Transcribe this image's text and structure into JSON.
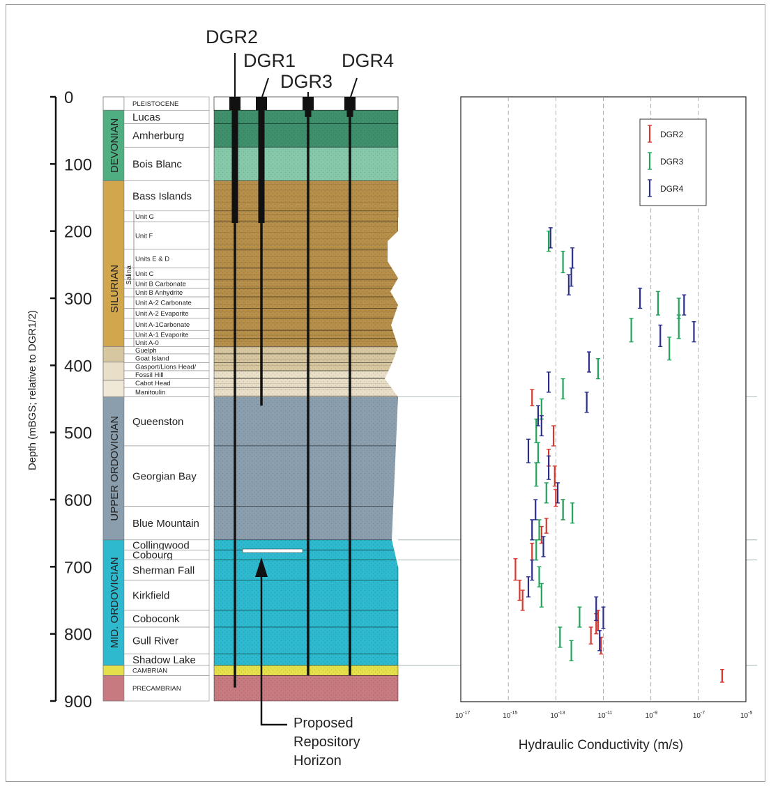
{
  "wells": [
    "DGR2",
    "DGR1",
    "DGR3",
    "DGR4"
  ],
  "depth_axis": {
    "label": "Depth (mBGS; relative to DGR1/2)",
    "ticks": [
      "0",
      "100",
      "200",
      "300",
      "400",
      "500",
      "600",
      "700",
      "800",
      "900"
    ],
    "range": [
      0,
      900
    ]
  },
  "systems": [
    {
      "name": "DEVONIAN",
      "top": 20,
      "bottom": 125,
      "color": "#4fae82"
    },
    {
      "name": "SILURIAN",
      "top": 125,
      "bottom": 447,
      "color": "#d2a64d"
    },
    {
      "name": "UPPER ORDOVICIAN",
      "top": 447,
      "bottom": 660,
      "color": "#8a9eae"
    },
    {
      "name": "MID. ORDOVICIAN",
      "top": 660,
      "bottom": 847,
      "color": "#2eb9cf"
    }
  ],
  "salina_label": "Salina",
  "formations": [
    {
      "name": "PLEISTOCENE",
      "top": 0,
      "bottom": 20,
      "size": "sm",
      "color": "#ffffff"
    },
    {
      "name": "Lucas",
      "top": 20,
      "bottom": 40,
      "size": "lg",
      "color": "#3f8f6c"
    },
    {
      "name": "Amherburg",
      "top": 40,
      "bottom": 75,
      "size": "lg",
      "color": "#3f8f6c"
    },
    {
      "name": "Bois Blanc",
      "top": 75,
      "bottom": 125,
      "size": "lg",
      "color": "#86c9aa"
    },
    {
      "name": "Bass Islands",
      "top": 125,
      "bottom": 170,
      "size": "lg",
      "color": "#b68f4a"
    },
    {
      "name": "Unit G",
      "top": 170,
      "bottom": 186,
      "size": "sm",
      "color": "#b68f4a"
    },
    {
      "name": "Unit F",
      "top": 186,
      "bottom": 227,
      "size": "sm",
      "color": "#b68f4a"
    },
    {
      "name": "Units E & D",
      "top": 227,
      "bottom": 255,
      "size": "sm",
      "color": "#b68f4a"
    },
    {
      "name": "Unit C",
      "top": 255,
      "bottom": 272,
      "size": "sm",
      "color": "#b68f4a"
    },
    {
      "name": "Unit B Carbonate",
      "top": 272,
      "bottom": 285,
      "size": "sm",
      "color": "#b68f4a"
    },
    {
      "name": "Unit B Anhydrite",
      "top": 285,
      "bottom": 298,
      "size": "sm",
      "color": "#b68f4a"
    },
    {
      "name": "Unit A-2 Carbonate",
      "top": 298,
      "bottom": 315,
      "size": "sm",
      "color": "#b68f4a"
    },
    {
      "name": "Unit A-2 Evaporite",
      "top": 315,
      "bottom": 330,
      "size": "sm",
      "color": "#b68f4a"
    },
    {
      "name": "Unit A-1Carbonate",
      "top": 330,
      "bottom": 348,
      "size": "sm",
      "color": "#b68f4a"
    },
    {
      "name": "Unit A-1 Evaporite",
      "top": 348,
      "bottom": 360,
      "size": "sm",
      "color": "#b68f4a"
    },
    {
      "name": "Unit A-0",
      "top": 360,
      "bottom": 372,
      "size": "sm",
      "color": "#b68f4a"
    },
    {
      "name": "Guelph",
      "top": 372,
      "bottom": 383,
      "size": "sm",
      "color": "#d7c7a1"
    },
    {
      "name": "Goat Island",
      "top": 383,
      "bottom": 396,
      "size": "sm",
      "color": "#d7c7a1"
    },
    {
      "name": "Gasport/Lions Head/",
      "top": 396,
      "bottom": 408,
      "size": "sm",
      "color": "#d7c7a1"
    },
    {
      "name": "Fossil Hill",
      "top": 408,
      "bottom": 420,
      "size": "sm",
      "color": "#e9dfc8"
    },
    {
      "name": "Cabot Head",
      "top": 420,
      "bottom": 433,
      "size": "sm",
      "color": "#e9dfc8"
    },
    {
      "name": "Manitoulin",
      "top": 433,
      "bottom": 447,
      "size": "sm",
      "color": "#e9dfc8"
    },
    {
      "name": "Queenston",
      "top": 447,
      "bottom": 520,
      "size": "lg",
      "color": "#8a9eae"
    },
    {
      "name": "Georgian Bay",
      "top": 520,
      "bottom": 610,
      "size": "lg",
      "color": "#8a9eae"
    },
    {
      "name": "Blue Mountain",
      "top": 610,
      "bottom": 660,
      "size": "lg",
      "color": "#8a9eae"
    },
    {
      "name": "Collingwood",
      "top": 660,
      "bottom": 675,
      "size": "lg",
      "color": "#2eb9cf"
    },
    {
      "name": "Cobourg",
      "top": 675,
      "bottom": 690,
      "size": "lg",
      "color": "#2eb9cf"
    },
    {
      "name": "Sherman Fall",
      "top": 690,
      "bottom": 720,
      "size": "lg",
      "color": "#2eb9cf"
    },
    {
      "name": "Kirkfield",
      "top": 720,
      "bottom": 765,
      "size": "lg",
      "color": "#2eb9cf"
    },
    {
      "name": "Coboconk",
      "top": 765,
      "bottom": 790,
      "size": "lg",
      "color": "#2eb9cf"
    },
    {
      "name": "Gull River",
      "top": 790,
      "bottom": 830,
      "size": "lg",
      "color": "#2eb9cf"
    },
    {
      "name": "Shadow Lake",
      "top": 830,
      "bottom": 847,
      "size": "lg",
      "color": "#2eb9cf"
    },
    {
      "name": "CAMBRIAN",
      "top": 847,
      "bottom": 862,
      "size": "sm",
      "color": "#e4df4a"
    },
    {
      "name": "PRECAMBRIAN",
      "top": 862,
      "bottom": 900,
      "size": "sm",
      "color": "#c77a80"
    }
  ],
  "repository": {
    "label_lines": [
      "Proposed",
      "Repository",
      "Horizon"
    ],
    "depth": 670
  },
  "chart_data": {
    "type": "scatter",
    "subtype": "vertical error bars (depth interval vs. hydraulic conductivity)",
    "xlabel": "Hydraulic Conductivity (m/s)",
    "xscale": "log",
    "xlim": [
      1e-17,
      1e-05
    ],
    "x_tick_labels": [
      "10-17",
      "10-15",
      "10-13",
      "10-11",
      "10-9",
      "10-7",
      "10-5"
    ],
    "ylim": [
      0,
      900
    ],
    "y_inverted": true,
    "grid": "vertical dashed lines at each decade",
    "legend_position": "top-right",
    "series": [
      {
        "name": "DGR2",
        "color": "#d7372d",
        "points": [
          {
            "k": 1e-14,
            "top": 436,
            "bottom": 460
          },
          {
            "k": 8e-14,
            "top": 490,
            "bottom": 520
          },
          {
            "k": 5e-14,
            "top": 525,
            "bottom": 550
          },
          {
            "k": 9e-14,
            "top": 550,
            "bottom": 580
          },
          {
            "k": 1e-13,
            "top": 585,
            "bottom": 610
          },
          {
            "k": 2e-13,
            "top": 600,
            "bottom": 630
          },
          {
            "k": 4e-14,
            "top": 628,
            "bottom": 650
          },
          {
            "k": 2.5e-14,
            "top": 640,
            "bottom": 665
          },
          {
            "k": 1e-14,
            "top": 665,
            "bottom": 690
          },
          {
            "k": 2e-15,
            "top": 688,
            "bottom": 720
          },
          {
            "k": 3e-15,
            "top": 720,
            "bottom": 750
          },
          {
            "k": 4e-15,
            "top": 735,
            "bottom": 765
          },
          {
            "k": 6e-12,
            "top": 765,
            "bottom": 795
          },
          {
            "k": 5e-12,
            "top": 770,
            "bottom": 800
          },
          {
            "k": 3e-12,
            "top": 790,
            "bottom": 815
          },
          {
            "k": 8e-12,
            "top": 805,
            "bottom": 830
          },
          {
            "k": 1e-06,
            "top": 853,
            "bottom": 872
          }
        ]
      },
      {
        "name": "DGR3",
        "color": "#22a35a",
        "points": [
          {
            "k": 5e-14,
            "top": 200,
            "bottom": 230
          },
          {
            "k": 2e-13,
            "top": 230,
            "bottom": 262
          },
          {
            "k": 1.5e-10,
            "top": 330,
            "bottom": 365
          },
          {
            "k": 2e-09,
            "top": 290,
            "bottom": 325
          },
          {
            "k": 1.5e-08,
            "top": 300,
            "bottom": 330
          },
          {
            "k": 1.5e-08,
            "top": 325,
            "bottom": 360
          },
          {
            "k": 6e-09,
            "top": 358,
            "bottom": 392
          },
          {
            "k": 6e-12,
            "top": 390,
            "bottom": 420
          },
          {
            "k": 2e-13,
            "top": 420,
            "bottom": 450
          },
          {
            "k": 2.5e-14,
            "top": 450,
            "bottom": 480
          },
          {
            "k": 1.5e-14,
            "top": 480,
            "bottom": 515
          },
          {
            "k": 1.8e-14,
            "top": 515,
            "bottom": 545
          },
          {
            "k": 1.5e-14,
            "top": 545,
            "bottom": 580
          },
          {
            "k": 4e-14,
            "top": 575,
            "bottom": 605
          },
          {
            "k": 2e-13,
            "top": 600,
            "bottom": 630
          },
          {
            "k": 5e-13,
            "top": 605,
            "bottom": 635
          },
          {
            "k": 2e-14,
            "top": 630,
            "bottom": 660
          },
          {
            "k": 1.5e-14,
            "top": 660,
            "bottom": 690
          },
          {
            "k": 2e-14,
            "top": 700,
            "bottom": 730
          },
          {
            "k": 2.5e-14,
            "top": 725,
            "bottom": 760
          },
          {
            "k": 1e-12,
            "top": 760,
            "bottom": 790
          },
          {
            "k": 1.5e-13,
            "top": 790,
            "bottom": 820
          },
          {
            "k": 4.5e-13,
            "top": 810,
            "bottom": 840
          }
        ]
      },
      {
        "name": "DGR4",
        "color": "#2b2f8a",
        "points": [
          {
            "k": 6e-14,
            "top": 195,
            "bottom": 225
          },
          {
            "k": 5e-13,
            "top": 225,
            "bottom": 255
          },
          {
            "k": 4.5e-13,
            "top": 255,
            "bottom": 282
          },
          {
            "k": 3.5e-13,
            "top": 265,
            "bottom": 295
          },
          {
            "k": 3.5e-10,
            "top": 285,
            "bottom": 315
          },
          {
            "k": 2.5e-08,
            "top": 295,
            "bottom": 325
          },
          {
            "k": 2.5e-09,
            "top": 340,
            "bottom": 372
          },
          {
            "k": 6.5e-08,
            "top": 335,
            "bottom": 365
          },
          {
            "k": 2.5e-12,
            "top": 380,
            "bottom": 410
          },
          {
            "k": 5e-14,
            "top": 410,
            "bottom": 440
          },
          {
            "k": 2e-12,
            "top": 440,
            "bottom": 470
          },
          {
            "k": 1.8e-14,
            "top": 460,
            "bottom": 490
          },
          {
            "k": 2.5e-14,
            "top": 475,
            "bottom": 505
          },
          {
            "k": 7e-15,
            "top": 510,
            "bottom": 545
          },
          {
            "k": 5e-14,
            "top": 535,
            "bottom": 570
          },
          {
            "k": 1.2e-13,
            "top": 575,
            "bottom": 605
          },
          {
            "k": 1.4e-14,
            "top": 600,
            "bottom": 630
          },
          {
            "k": 1e-14,
            "top": 630,
            "bottom": 660
          },
          {
            "k": 3e-14,
            "top": 655,
            "bottom": 685
          },
          {
            "k": 1e-14,
            "top": 690,
            "bottom": 720
          },
          {
            "k": 7e-15,
            "top": 715,
            "bottom": 745
          },
          {
            "k": 5e-12,
            "top": 745,
            "bottom": 780
          },
          {
            "k": 1e-11,
            "top": 760,
            "bottom": 792
          },
          {
            "k": 7e-12,
            "top": 795,
            "bottom": 825
          }
        ]
      }
    ]
  }
}
